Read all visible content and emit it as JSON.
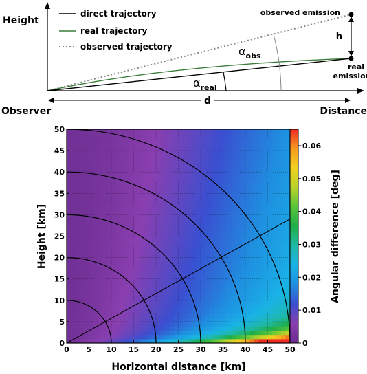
{
  "diagram": {
    "ylabel": "Height",
    "xlabel_left": "Observer",
    "xlabel_right": "Distance",
    "legend": [
      {
        "label": "direct trajectory",
        "style": "solid",
        "color": "#000000"
      },
      {
        "label": "real trajectory",
        "style": "solid",
        "color": "#3a7d3a"
      },
      {
        "label": "observed trajectory",
        "style": "dotted",
        "color": "#888888"
      }
    ],
    "observed_emission": "observed emission",
    "real_emission_line1": "real",
    "real_emission_line2": "emission",
    "h_label": "h",
    "d_label": "d",
    "alpha_symbol": "α",
    "alpha_obs_sub": "obs",
    "alpha_real_sub": "real"
  },
  "chart_data": {
    "type": "heatmap",
    "xlabel": "Horizontal distance [km]",
    "ylabel": "Height [km]",
    "colorbar_label": "Angular difference [deg]",
    "xlim": [
      0,
      50
    ],
    "ylim": [
      0,
      50
    ],
    "x_ticks": [
      "0",
      "5",
      "10",
      "15",
      "20",
      "25",
      "30",
      "35",
      "40",
      "45",
      "50"
    ],
    "y_ticks": [
      "0",
      "5",
      "10",
      "15",
      "20",
      "25",
      "30",
      "35",
      "40",
      "45",
      "50"
    ],
    "color_range": [
      0,
      0.065
    ],
    "colorbar_ticks": [
      "0",
      "0.01",
      "0.02",
      "0.03",
      "0.04",
      "0.05",
      "0.06"
    ],
    "colorbar_tick_values": [
      0,
      0.01,
      0.02,
      0.03,
      0.04,
      0.05,
      0.06
    ],
    "colormap": [
      "#6a2d8f",
      "#8a3fb0",
      "#3a4fd0",
      "#1f8fe0",
      "#19b3e6",
      "#1fb8a8",
      "#1fae4a",
      "#57c43a",
      "#b8d22a",
      "#f2d21f",
      "#f59a1f",
      "#ee2a22"
    ],
    "arc_radii_km": [
      10,
      20,
      30,
      40,
      50
    ],
    "ray_line": {
      "x": [
        0,
        50
      ],
      "y": [
        0,
        29
      ]
    },
    "grid": true
  }
}
